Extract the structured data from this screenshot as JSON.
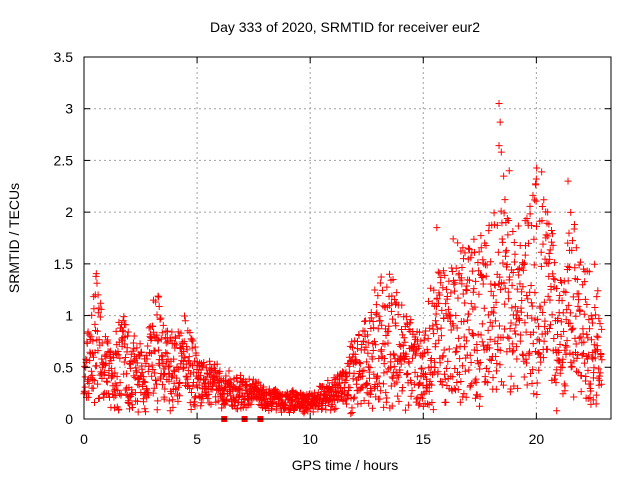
{
  "chart_data": {
    "type": "scatter",
    "title": "Day 333 of 2020, SRMTID for receiver eur2",
    "xlabel": "GPS time / hours",
    "ylabel": "SRMTID / TECUs",
    "xlim": [
      0,
      23.3
    ],
    "ylim": [
      0,
      3.5
    ],
    "x_ticks": [
      0,
      5,
      10,
      15,
      20
    ],
    "x_tick_labels": [
      "0",
      "5",
      "10",
      "15",
      "20"
    ],
    "y_ticks": [
      0,
      0.5,
      1,
      1.5,
      2,
      2.5,
      3,
      3.5
    ],
    "y_tick_labels": [
      "0",
      "0.5",
      "1",
      "1.5",
      "2",
      "2.5",
      "3",
      "3.5"
    ],
    "grid": true,
    "marker": "+",
    "series": [
      {
        "name": "SRMTID",
        "color": "#ff0000",
        "envelope_x": [
          0,
          0.3,
          0.5,
          0.8,
          1.2,
          1.7,
          2.2,
          2.7,
          3.2,
          3.5,
          4,
          4.5,
          5,
          5.5,
          6,
          6.5,
          7,
          7.5,
          8,
          8.5,
          9,
          9.5,
          10,
          10.5,
          11,
          11.5,
          12,
          12.5,
          13,
          13.5,
          14,
          14.5,
          15,
          15.5,
          16,
          16.5,
          17,
          17.5,
          18,
          18.3,
          18.6,
          19,
          19.5,
          20,
          20.5,
          21,
          21.5,
          22,
          22.5,
          22.9
        ],
        "envelope_y": [
          0.35,
          0.6,
          0.85,
          0.55,
          0.4,
          0.6,
          0.45,
          0.4,
          0.75,
          0.55,
          0.5,
          0.55,
          0.4,
          0.35,
          0.3,
          0.28,
          0.25,
          0.25,
          0.2,
          0.18,
          0.17,
          0.17,
          0.15,
          0.2,
          0.25,
          0.35,
          0.45,
          0.55,
          0.7,
          0.85,
          0.65,
          0.55,
          0.45,
          0.8,
          0.9,
          0.95,
          0.95,
          0.95,
          1.1,
          1.5,
          1.3,
          1.0,
          1.1,
          1.4,
          1.2,
          0.7,
          1.2,
          0.8,
          0.9,
          0.55
        ],
        "peaks": [
          {
            "x": 18.35,
            "y": 3.05
          },
          {
            "x": 18.4,
            "y": 2.87
          },
          {
            "x": 18.45,
            "y": 2.58
          },
          {
            "x": 18.8,
            "y": 2.4
          },
          {
            "x": 20.0,
            "y": 2.32
          },
          {
            "x": 21.4,
            "y": 2.3
          },
          {
            "x": 20.5,
            "y": 2.0
          },
          {
            "x": 15.6,
            "y": 1.85
          },
          {
            "x": 17.0,
            "y": 1.65
          },
          {
            "x": 0.5,
            "y": 1.2
          },
          {
            "x": 3.3,
            "y": 1.18
          },
          {
            "x": 13.6,
            "y": 1.12
          },
          {
            "x": 20.9,
            "y": 0.08
          }
        ],
        "squares_x": [
          6.2,
          7.1,
          7.8
        ],
        "squares_y": [
          0.0,
          0.0,
          0.0
        ]
      }
    ]
  }
}
